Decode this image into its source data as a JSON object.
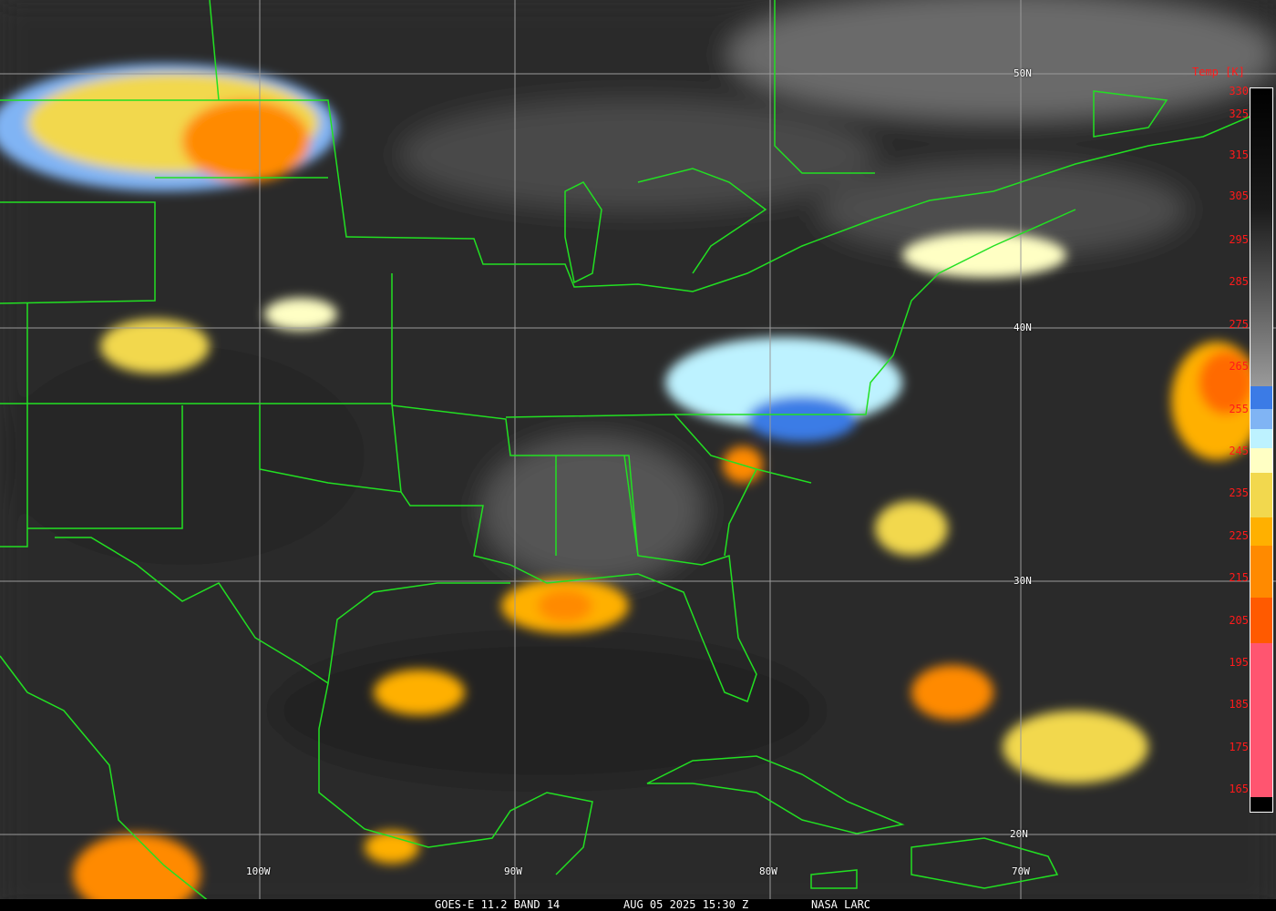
{
  "caption": {
    "satellite": "GOES-E 11.2 BAND 14",
    "datetime": "AUG 05 2025 15:30 Z",
    "source": "NASA LARC"
  },
  "colorbar": {
    "title": "Temp [K]",
    "labels": [
      "330",
      "325",
      "315",
      "305",
      "295",
      "285",
      "275",
      "265",
      "255",
      "245",
      "235",
      "225",
      "215",
      "205",
      "195",
      "185",
      "175",
      "165"
    ],
    "colors": {
      "blue": "#3b7be6",
      "light_blue": "#80b4f4",
      "pale_cyan": "#bdf2ff",
      "pale_yellow": "#ffffc4",
      "yellow": "#f2d84e",
      "amber": "#ffb000",
      "orange": "#ff8a00",
      "red_orange": "#ff5a00",
      "pink": "#ff5570"
    }
  },
  "grid": {
    "latitudes": [
      "50N",
      "40N",
      "30N",
      "20N"
    ],
    "longitudes": [
      "100W",
      "90W",
      "80W",
      "70W"
    ]
  },
  "colors": {
    "boundaries": "#22e022",
    "gridlines": "#9a9a9a"
  }
}
